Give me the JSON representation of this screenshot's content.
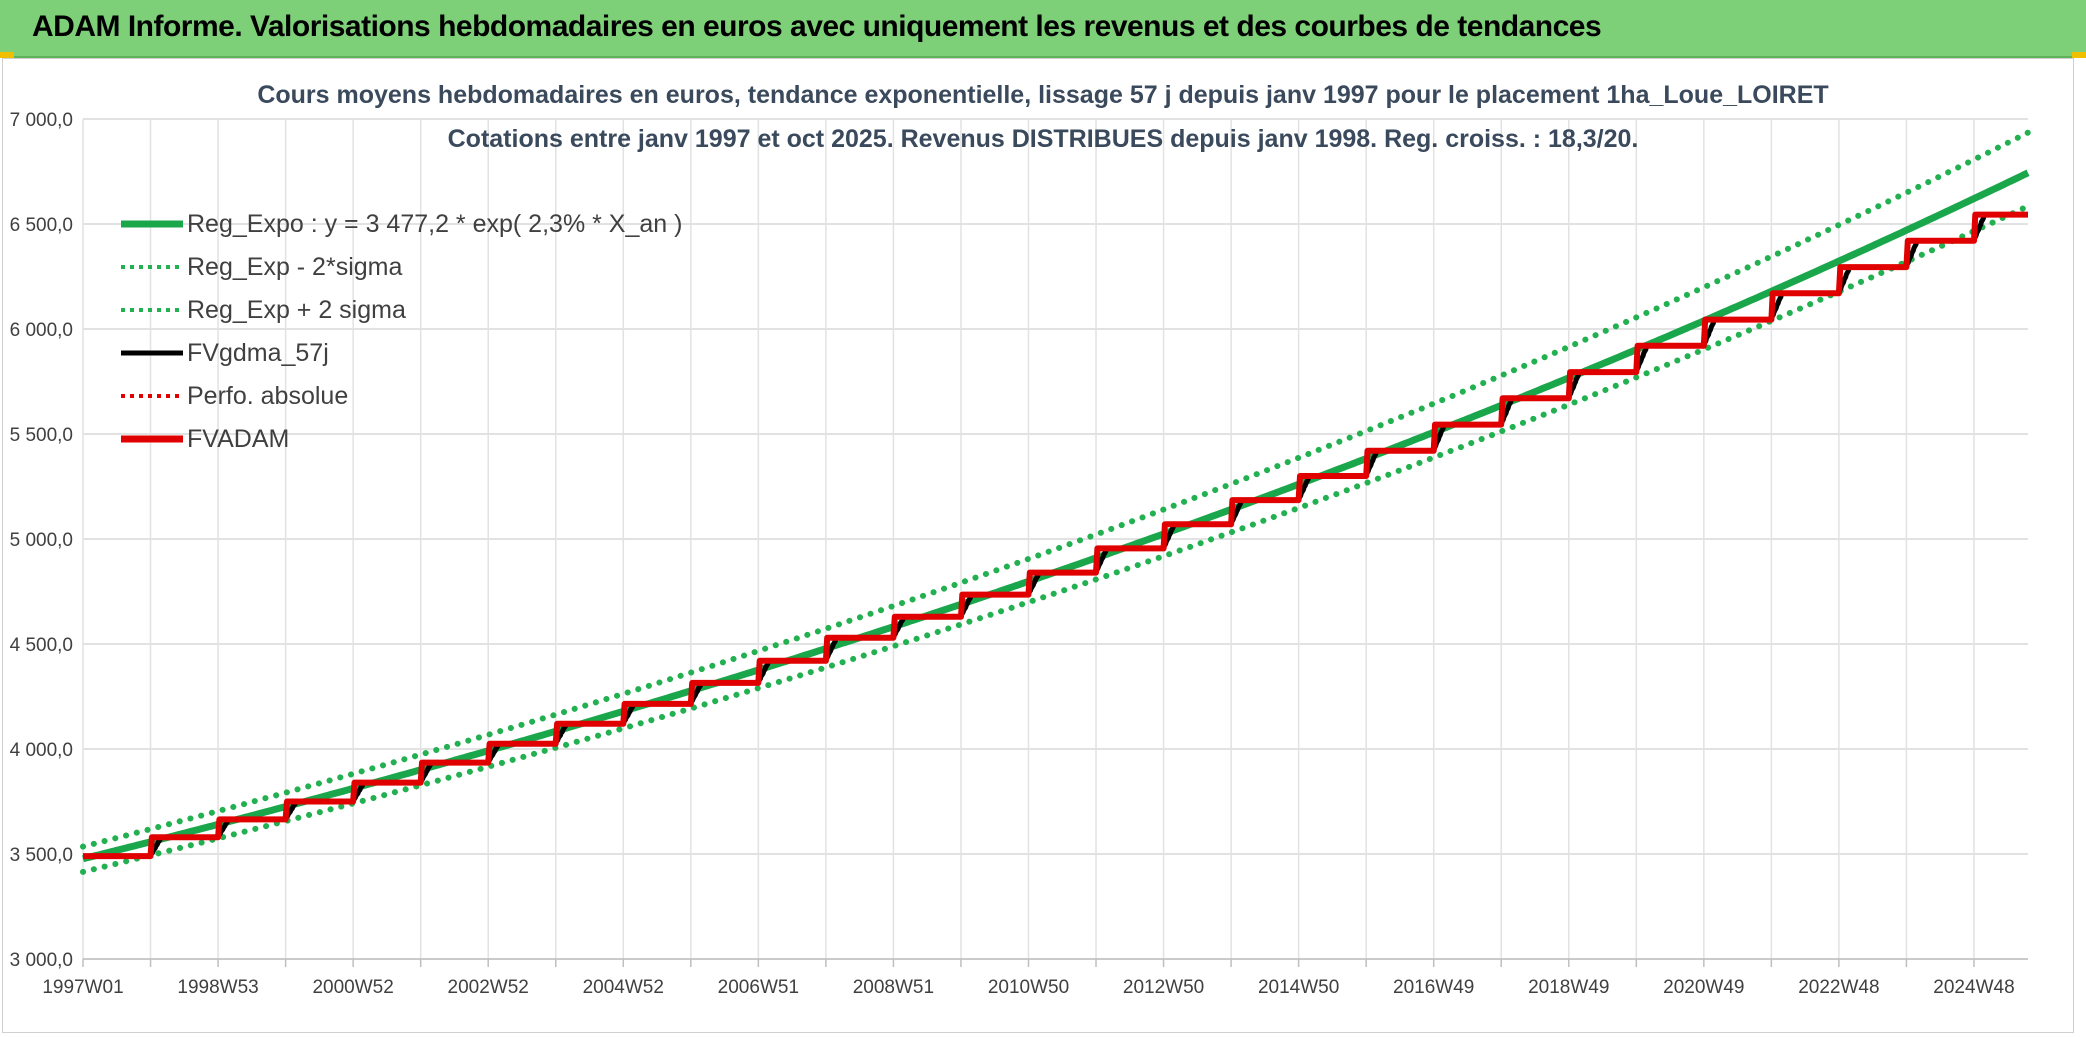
{
  "header": {
    "title": "ADAM Informe. Valorisations hebdomadaires en euros avec uniquement les revenus et des courbes de tendances"
  },
  "colors": {
    "header_bg": "#7dcf78",
    "reg_expo": "#1aa64a",
    "sigma_bands": "#22b050",
    "fvgdma": "#000000",
    "perfo": "#e00000",
    "fvadam": "#e00000"
  },
  "chart_data": {
    "type": "line",
    "title": "Cours moyens hebdomadaires en euros, tendance exponentielle, lissage 57 j depuis janv 1997 pour le placement 1ha_Loue_LOIRET",
    "subtitle": "Cotations entre janv 1997 et oct 2025. Revenus DISTRIBUES depuis janv 1998. Reg. croiss. : 18,3/20.",
    "xlabel": "",
    "ylabel": "",
    "x_tick_labels": [
      "1997W01",
      "1998W53",
      "2000W52",
      "2002W52",
      "2004W52",
      "2006W51",
      "2008W51",
      "2010W50",
      "2012W50",
      "2014W50",
      "2016W49",
      "2018W49",
      "2020W49",
      "2022W48",
      "2024W48"
    ],
    "x_range_years": [
      1997.0,
      2025.8
    ],
    "ylim": [
      3000,
      7000
    ],
    "y_ticks": [
      3000,
      3500,
      4000,
      4500,
      5000,
      5500,
      6000,
      6500,
      7000
    ],
    "y_tick_labels": [
      "3 000,0",
      "3 500,0",
      "4 000,0",
      "4 500,0",
      "5 000,0",
      "5 500,0",
      "6 000,0",
      "6 500,0",
      "7 000,0"
    ],
    "grid": true,
    "legend_position": "top-left",
    "legend": [
      {
        "label": "Reg_Expo : y = 3 477,2  * exp( 2,3% *  X_an )",
        "style": "solid-thick",
        "color": "#1aa64a"
      },
      {
        "label": "Reg_Exp - 2*sigma",
        "style": "dotted",
        "color": "#22b050"
      },
      {
        "label": "Reg_Exp + 2 sigma",
        "style": "dotted",
        "color": "#22b050"
      },
      {
        "label": "FVgdma_57j",
        "style": "solid",
        "color": "#000000"
      },
      {
        "label": "Perfo. absolue",
        "style": "dotted",
        "color": "#e00000"
      },
      {
        "label": "FVADAM",
        "style": "solid-thick",
        "color": "#e00000"
      }
    ],
    "regression": {
      "a": 3477.2,
      "rate": 0.023
    },
    "series": [
      {
        "name": "Reg_Expo : y = 3 477,2  * exp( 2,3% *  X_an )",
        "kind": "exp",
        "a": 3477.2,
        "rate": 0.023,
        "start": 1997.0,
        "end": 2025.8
      },
      {
        "name": "Reg_Exp - 2*sigma",
        "kind": "exp",
        "a": 3415,
        "rate": 0.0228,
        "start": 1997.0,
        "end": 2025.8
      },
      {
        "name": "Reg_Exp + 2 sigma",
        "kind": "exp",
        "a": 3535,
        "rate": 0.0234,
        "start": 1997.0,
        "end": 2025.8
      },
      {
        "name": "FVADAM",
        "kind": "step",
        "start_year": 1997.0,
        "end_year": 2025.8,
        "step_years": [
          1998,
          1999,
          2000,
          2001,
          2002,
          2003,
          2004,
          2005,
          2006,
          2007,
          2008,
          2009,
          2010,
          2011,
          2012,
          2013,
          2014,
          2015,
          2016,
          2017,
          2018,
          2019,
          2020,
          2021,
          2022,
          2023,
          2024,
          2025
        ],
        "levels": [
          3490,
          3580,
          3665,
          3750,
          3840,
          3935,
          4025,
          4120,
          4215,
          4315,
          4420,
          4530,
          4630,
          4735,
          4840,
          4955,
          5070,
          5185,
          5300,
          5420,
          5545,
          5670,
          5795,
          5920,
          6045,
          6170,
          6295,
          6420,
          6545
        ]
      },
      {
        "name": "FVgdma_57j",
        "kind": "smoothed",
        "source": "FVADAM",
        "window_years": 0.156
      },
      {
        "name": "Perfo. absolue",
        "kind": "same-as",
        "source": "FVADAM"
      }
    ]
  }
}
